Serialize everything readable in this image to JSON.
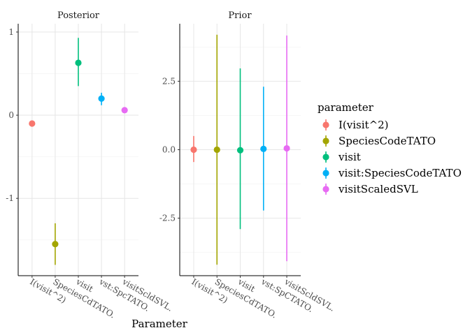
{
  "chart_data": {
    "type": "scatter",
    "subtype": "pointrange",
    "xlabel": "Parameter",
    "ylabel": "",
    "grid": true,
    "legend_position": "right",
    "legend": {
      "title": "parameter",
      "entries": [
        {
          "label": "I(visit^2)",
          "color": "#F8766D"
        },
        {
          "label": "SpeciesCodeTATO",
          "color": "#A3A500"
        },
        {
          "label": "visit",
          "color": "#00BF7D"
        },
        {
          "label": "visit:SpeciesCodeTATO",
          "color": "#00B0F6"
        },
        {
          "label": "visitScaledSVL",
          "color": "#E76BF3"
        }
      ]
    },
    "panels": [
      {
        "title": "Posterior",
        "ylim": [
          -1.93,
          1.1
        ],
        "yticks": [
          1,
          0,
          -1
        ],
        "ytick_labels": [
          "1",
          "0",
          "-1"
        ],
        "categories": [
          "I(visit^2)",
          "SpeciesCdTATO.",
          "visit",
          "vst:SpcTATO.",
          "visitScldSVL."
        ],
        "series": [
          {
            "name": "I(visit^2)",
            "value": -0.1,
            "lower": -0.1,
            "upper": -0.1
          },
          {
            "name": "SpeciesCodeTATO",
            "value": -1.55,
            "lower": -1.8,
            "upper": -1.3
          },
          {
            "name": "visit",
            "value": 0.63,
            "lower": 0.35,
            "upper": 0.93
          },
          {
            "name": "visit:SpeciesCodeTATO",
            "value": 0.2,
            "lower": 0.12,
            "upper": 0.27
          },
          {
            "name": "visitScaledSVL",
            "value": 0.06,
            "lower": 0.06,
            "upper": 0.06
          }
        ]
      },
      {
        "title": "Prior",
        "ylim": [
          -4.6,
          4.6
        ],
        "yticks": [
          2.5,
          0.0,
          -2.5
        ],
        "ytick_labels": [
          "2.5",
          "0.0",
          "-2.5"
        ],
        "categories": [
          "I(visit^2)",
          "SpeciesCdTATO.",
          "visit",
          "vst:SpCTATO.",
          "visitScldSVL."
        ],
        "series": [
          {
            "name": "I(visit^2)",
            "value": 0.0,
            "lower": -0.45,
            "upper": 0.5
          },
          {
            "name": "SpeciesCodeTATO",
            "value": 0.0,
            "lower": -4.2,
            "upper": 4.2
          },
          {
            "name": "visit",
            "value": -0.02,
            "lower": -2.9,
            "upper": 2.97
          },
          {
            "name": "visit:SpeciesCodeTATO",
            "value": 0.03,
            "lower": -2.22,
            "upper": 2.3
          },
          {
            "name": "visitScaledSVL",
            "value": 0.05,
            "lower": -4.07,
            "upper": 4.17
          }
        ]
      }
    ]
  }
}
